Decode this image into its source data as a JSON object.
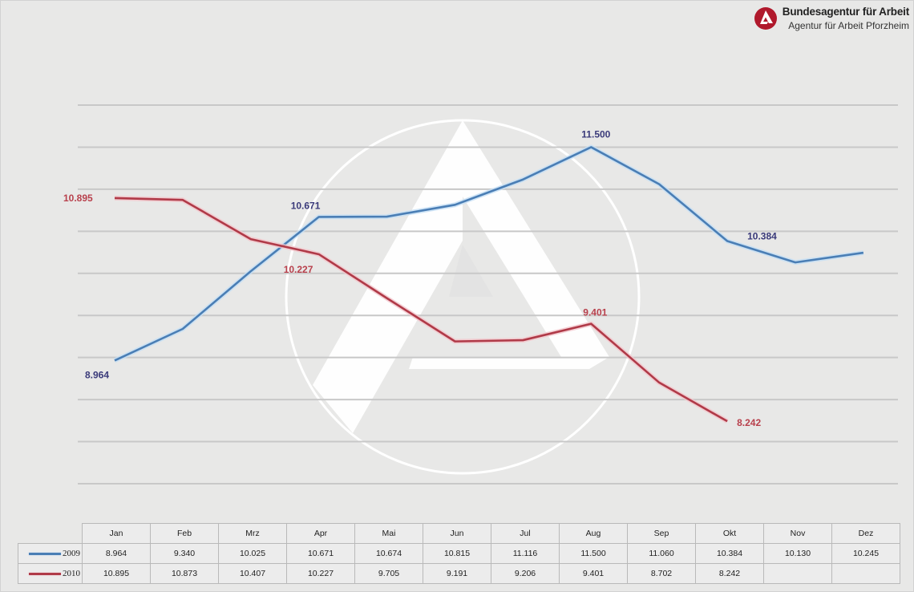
{
  "brand": {
    "title": "Bundesagentur für Arbeit",
    "subtitle": "Agentur für Arbeit Pforzheim",
    "logo_color": "#b0192c"
  },
  "colors": {
    "series_2009": "#4a7eb5",
    "series_2010": "#b03a48",
    "label_2009": "#3a3a7a",
    "label_2010": "#b8404c",
    "gridline": "#c8c8c8",
    "background": "#e8e8e7"
  },
  "chart_data": {
    "type": "line",
    "title": "",
    "xlabel": "",
    "ylabel": "",
    "categories": [
      "Jan",
      "Feb",
      "Mrz",
      "Apr",
      "Mai",
      "Jun",
      "Jul",
      "Aug",
      "Sep",
      "Okt",
      "Nov",
      "Dez"
    ],
    "series": [
      {
        "name": "2009",
        "values": [
          8964,
          9340,
          10025,
          10671,
          10674,
          10815,
          11116,
          11500,
          11060,
          10384,
          10130,
          10245
        ],
        "display": [
          "8.964",
          "9.340",
          "10.025",
          "10.671",
          "10.674",
          "10.815",
          "11.116",
          "11.500",
          "11.060",
          "10.384",
          "10.130",
          "10.245"
        ]
      },
      {
        "name": "2010",
        "values": [
          10895,
          10873,
          10407,
          10227,
          9705,
          9191,
          9206,
          9401,
          8702,
          8242,
          null,
          null
        ],
        "display": [
          "10.895",
          "10.873",
          "10.407",
          "10.227",
          "9.705",
          "9.191",
          "9.206",
          "9.401",
          "8.702",
          "8.242",
          "",
          ""
        ]
      }
    ],
    "annotations": [
      {
        "series": "2009",
        "month": "Jan",
        "text": "8.964"
      },
      {
        "series": "2009",
        "month": "Apr",
        "text": "10.671"
      },
      {
        "series": "2009",
        "month": "Aug",
        "text": "11.500"
      },
      {
        "series": "2009",
        "month": "Okt",
        "text": "10.384"
      },
      {
        "series": "2010",
        "month": "Jan",
        "text": "10.895"
      },
      {
        "series": "2010",
        "month": "Apr",
        "text": "10.227"
      },
      {
        "series": "2010",
        "month": "Aug",
        "text": "9.401"
      },
      {
        "series": "2010",
        "month": "Okt",
        "text": "8.242"
      }
    ],
    "ylim": [
      7500,
      12000
    ],
    "gridlines": [
      12000,
      11500,
      11000,
      10500,
      10000,
      9500,
      9000,
      8500,
      8000,
      7500
    ],
    "grid": true,
    "y_axis_labels_shown": false,
    "legend_position": "data-table-left"
  },
  "table": {
    "headers": [
      "Jan",
      "Feb",
      "Mrz",
      "Apr",
      "Mai",
      "Jun",
      "Jul",
      "Aug",
      "Sep",
      "Okt",
      "Nov",
      "Dez"
    ],
    "rows": [
      {
        "label": "2009",
        "cells": [
          "8.964",
          "9.340",
          "10.025",
          "10.671",
          "10.674",
          "10.815",
          "11.116",
          "11.500",
          "11.060",
          "10.384",
          "10.130",
          "10.245"
        ]
      },
      {
        "label": "2010",
        "cells": [
          "10.895",
          "10.873",
          "10.407",
          "10.227",
          "9.705",
          "9.191",
          "9.206",
          "9.401",
          "8.702",
          "8.242",
          "",
          ""
        ]
      }
    ]
  }
}
